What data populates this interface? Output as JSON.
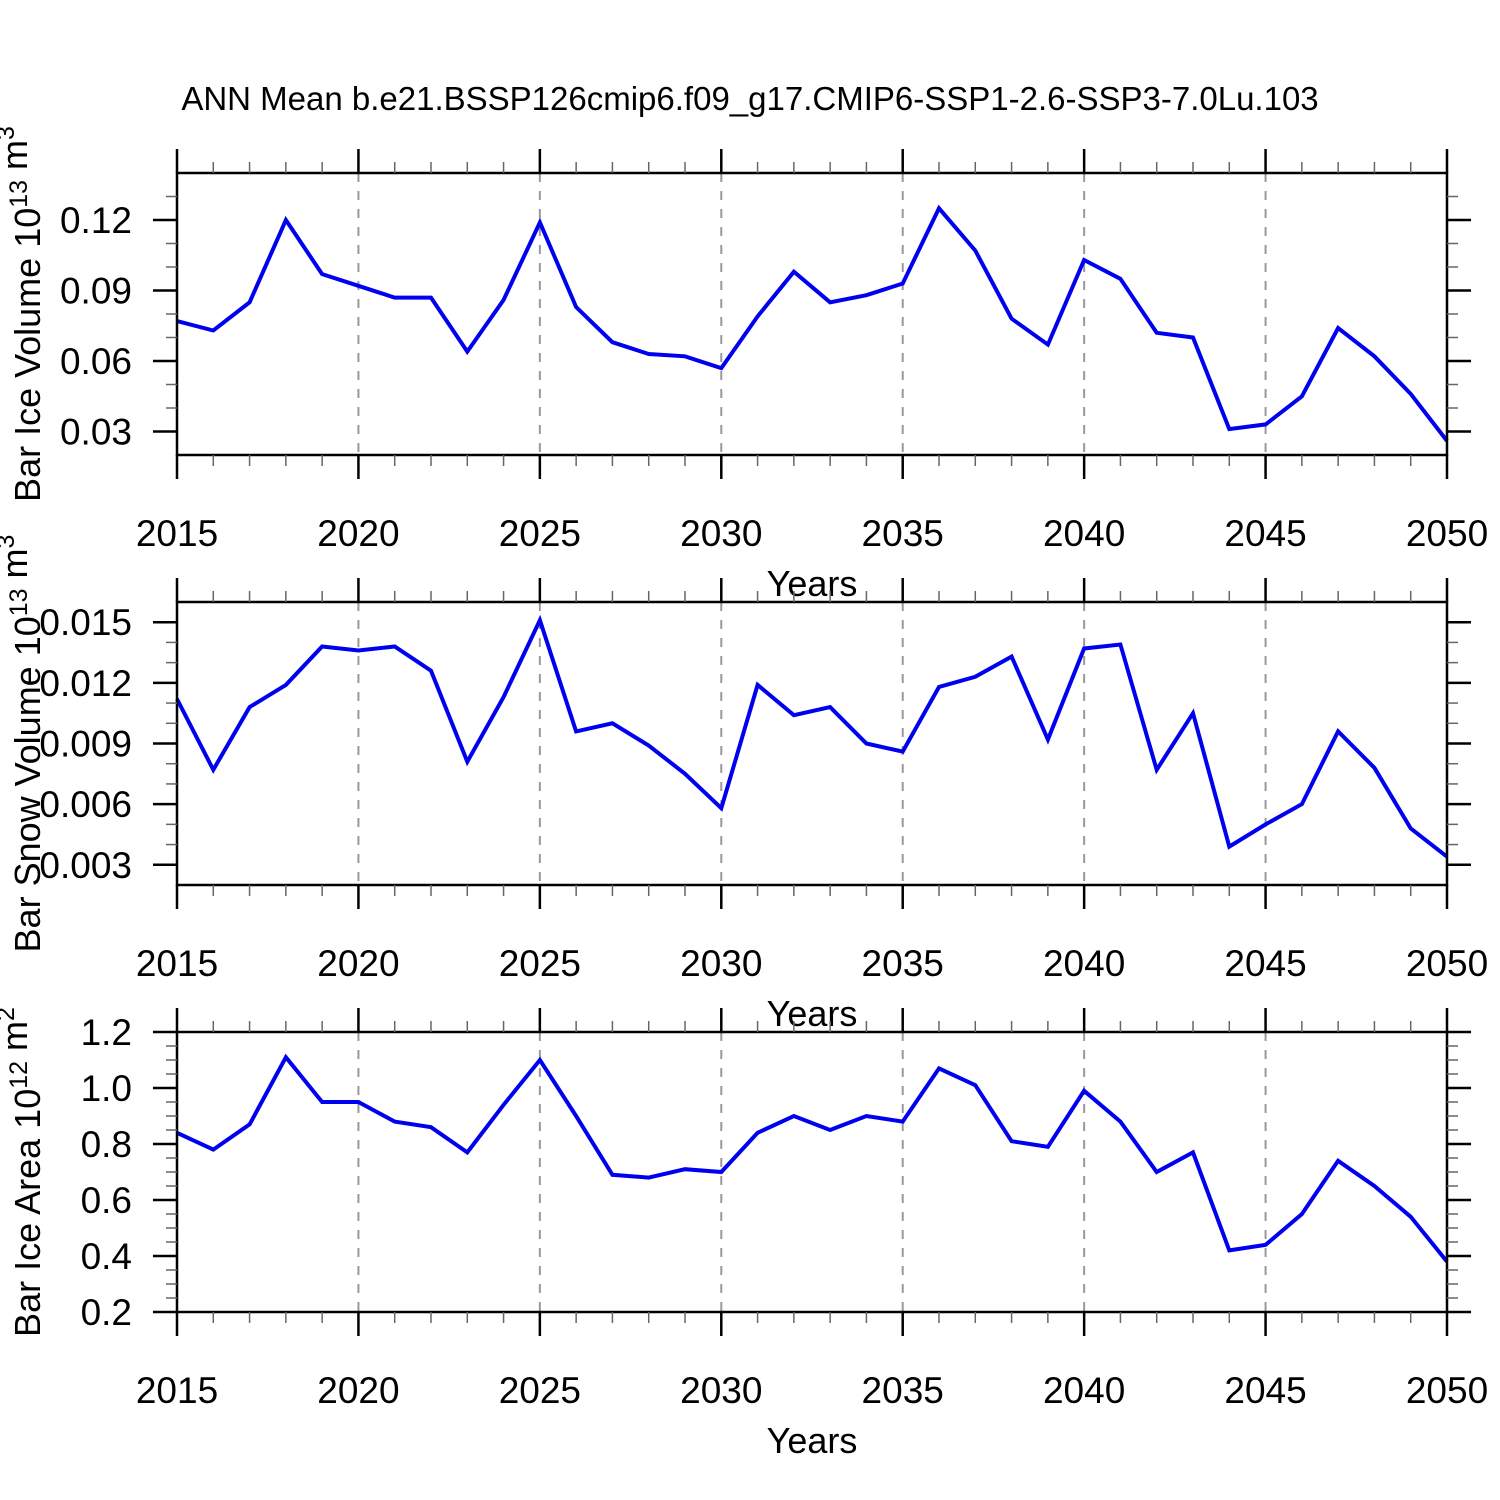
{
  "title": "ANN Mean b.e21.BSSP126cmip6.f09_g17.CMIP6-SSP1-2.6-SSP3-7.0Lu.103",
  "colors": {
    "line": "#0000f0",
    "grid": "#999999",
    "axis": "#000000",
    "minor_tick": "#666666",
    "background": "#ffffff"
  },
  "chart_data": {
    "type": "line",
    "title": "ANN Mean b.e21.BSSP126cmip6.f09_g17.CMIP6-SSP1-2.6-SSP3-7.0Lu.103",
    "xlabel": "Years",
    "x": [
      2015,
      2016,
      2017,
      2018,
      2019,
      2020,
      2021,
      2022,
      2023,
      2024,
      2025,
      2026,
      2027,
      2028,
      2029,
      2030,
      2031,
      2032,
      2033,
      2034,
      2035,
      2036,
      2037,
      2038,
      2039,
      2040,
      2041,
      2042,
      2043,
      2044,
      2045,
      2046,
      2047,
      2048,
      2049,
      2050
    ],
    "xlim": [
      2015,
      2050
    ],
    "x_major_ticks": [
      2015,
      2020,
      2025,
      2030,
      2035,
      2040,
      2045,
      2050
    ],
    "x_tick_labels": [
      "2015",
      "2020",
      "2025",
      "2030",
      "2035",
      "2040",
      "2045",
      "2050"
    ],
    "x_minor_step_years": 1,
    "x_grid_lines": [
      2020,
      2025,
      2030,
      2035,
      2040,
      2045
    ],
    "grid": "vertical dashed gridlines at 5-year major ticks",
    "legend": null,
    "panels": [
      {
        "name": "bar-ice-volume",
        "ylabel": "Bar Ice Volume 10^13 m^3",
        "ylabel_parts": [
          {
            "text": "Bar Ice Volume 10"
          },
          {
            "text": "13",
            "sup": true
          },
          {
            "text": " m"
          },
          {
            "text": "3",
            "sup": true
          }
        ],
        "ylim": [
          0.02,
          0.14
        ],
        "yticks": [
          0.03,
          0.06,
          0.09,
          0.12
        ],
        "ytick_labels": [
          "0.03",
          "0.06",
          "0.09",
          "0.12"
        ],
        "y_minor_step": 0.01,
        "values": [
          0.077,
          0.073,
          0.085,
          0.12,
          0.097,
          0.092,
          0.087,
          0.087,
          0.064,
          0.086,
          0.119,
          0.083,
          0.068,
          0.063,
          0.062,
          0.057,
          0.079,
          0.098,
          0.085,
          0.088,
          0.093,
          0.125,
          0.107,
          0.078,
          0.067,
          0.103,
          0.095,
          0.072,
          0.07,
          0.031,
          0.033,
          0.045,
          0.074,
          0.062,
          0.046,
          0.026
        ]
      },
      {
        "name": "bar-snow-volume",
        "ylabel": "Bar Snow Volume 10^13 m^3",
        "ylabel_parts": [
          {
            "text": "Bar Snow Volume 10"
          },
          {
            "text": "13",
            "sup": true
          },
          {
            "text": " m"
          },
          {
            "text": "3",
            "sup": true
          }
        ],
        "ylim": [
          0.002,
          0.016
        ],
        "yticks": [
          0.003,
          0.006,
          0.009,
          0.012,
          0.015
        ],
        "ytick_labels": [
          "0.003",
          "0.006",
          "0.009",
          "0.012",
          "0.015"
        ],
        "y_minor_step": 0.001,
        "values": [
          0.0112,
          0.0077,
          0.0108,
          0.0119,
          0.0138,
          0.0136,
          0.0138,
          0.0126,
          0.0081,
          0.0113,
          0.0151,
          0.0096,
          0.01,
          0.0089,
          0.0075,
          0.0058,
          0.0119,
          0.0104,
          0.0108,
          0.009,
          0.0086,
          0.0118,
          0.0123,
          0.0133,
          0.0092,
          0.0137,
          0.0139,
          0.0077,
          0.0105,
          0.0039,
          0.005,
          0.006,
          0.0096,
          0.0078,
          0.0048,
          0.0034
        ]
      },
      {
        "name": "bar-ice-area",
        "ylabel": "Bar Ice Area 10^12 m^2",
        "ylabel_parts": [
          {
            "text": "Bar Ice Area 10"
          },
          {
            "text": "12",
            "sup": true
          },
          {
            "text": " m"
          },
          {
            "text": "2",
            "sup": true
          }
        ],
        "ylim": [
          0.2,
          1.2
        ],
        "yticks": [
          0.2,
          0.4,
          0.6,
          0.8,
          1.0,
          1.2
        ],
        "ytick_labels": [
          "0.2",
          "0.4",
          "0.6",
          "0.8",
          "1.0",
          "1.2"
        ],
        "y_minor_step": 0.05,
        "values": [
          0.84,
          0.78,
          0.87,
          1.11,
          0.95,
          0.95,
          0.88,
          0.86,
          0.77,
          0.94,
          1.1,
          0.9,
          0.69,
          0.68,
          0.71,
          0.7,
          0.84,
          0.9,
          0.85,
          0.9,
          0.88,
          1.07,
          1.01,
          0.81,
          0.79,
          0.99,
          0.88,
          0.7,
          0.77,
          0.42,
          0.44,
          0.55,
          0.74,
          0.65,
          0.54,
          0.38
        ]
      }
    ]
  }
}
